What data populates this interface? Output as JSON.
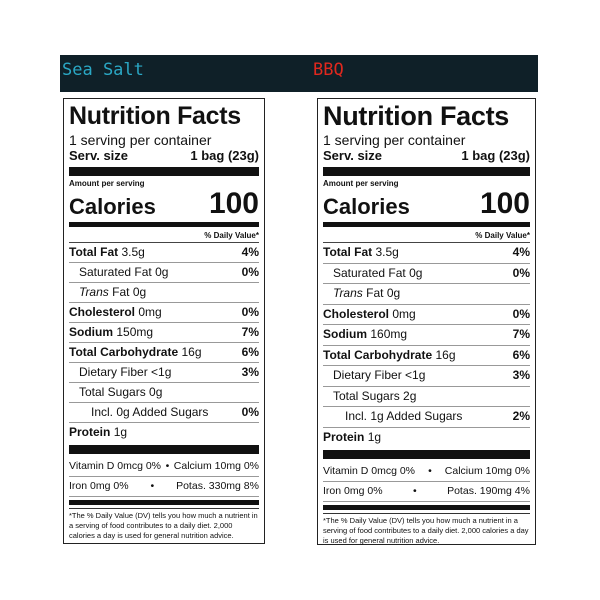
{
  "flavors": {
    "left": "Sea Salt",
    "right": "BBQ"
  },
  "labels": [
    {
      "title": "Nutrition Facts",
      "servings": "1 serving per container",
      "serv_label": "Serv. size",
      "serv_value": "1 bag (23g)",
      "amount_per_serving": "Amount per serving",
      "calories_label": "Calories",
      "calories_value": "100",
      "dv_header": "% Daily Value*",
      "rows": {
        "total_fat": {
          "name": "Total Fat",
          "amount": "3.5g",
          "pct": "4%"
        },
        "sat_fat": {
          "name": "Saturated Fat",
          "amount": "0g",
          "pct": "0%"
        },
        "trans_fat": {
          "name": "Trans",
          "amount": "Fat 0g"
        },
        "cholesterol": {
          "name": "Cholesterol",
          "amount": "0mg",
          "pct": "0%"
        },
        "sodium": {
          "name": "Sodium",
          "amount": "150mg",
          "pct": "7%"
        },
        "carb": {
          "name": "Total Carbohydrate",
          "amount": "16g",
          "pct": "6%"
        },
        "fiber": {
          "name": "Dietary Fiber",
          "amount": "<1g",
          "pct": "3%"
        },
        "sugars": {
          "name": "Total Sugars",
          "amount": "0g"
        },
        "added_sugars": {
          "name": "Incl. 0g Added Sugars",
          "pct": "0%"
        },
        "protein": {
          "name": "Protein",
          "amount": "1g"
        }
      },
      "vit_d": "Vitamin D 0mcg 0%",
      "calcium": "Calcium 10mg 0%",
      "iron": "Iron 0mg 0%",
      "potassium": "Potas. 330mg 8%",
      "bullet": "•",
      "footnote": "*The % Daily Value (DV) tells you how much a nutrient in a serving of food contributes to a daily diet. 2,000 calories a day is used for general nutrition advice."
    },
    {
      "title": "Nutrition Facts",
      "servings": "1 serving per container",
      "serv_label": "Serv. size",
      "serv_value": "1 bag (23g)",
      "amount_per_serving": "Amount per serving",
      "calories_label": "Calories",
      "calories_value": "100",
      "dv_header": "% Daily Value*",
      "rows": {
        "total_fat": {
          "name": "Total Fat",
          "amount": "3.5g",
          "pct": "4%"
        },
        "sat_fat": {
          "name": "Saturated Fat",
          "amount": "0g",
          "pct": "0%"
        },
        "trans_fat": {
          "name": "Trans",
          "amount": "Fat 0g"
        },
        "cholesterol": {
          "name": "Cholesterol",
          "amount": "0mg",
          "pct": "0%"
        },
        "sodium": {
          "name": "Sodium",
          "amount": "160mg",
          "pct": "7%"
        },
        "carb": {
          "name": "Total Carbohydrate",
          "amount": "16g",
          "pct": "6%"
        },
        "fiber": {
          "name": "Dietary Fiber",
          "amount": "<1g",
          "pct": "3%"
        },
        "sugars": {
          "name": "Total Sugars",
          "amount": "2g"
        },
        "added_sugars": {
          "name": "Incl. 1g Added Sugars",
          "pct": "2%"
        },
        "protein": {
          "name": "Protein",
          "amount": "1g"
        }
      },
      "vit_d": "Vitamin D 0mcg 0%",
      "calcium": "Calcium 10mg 0%",
      "iron": "Iron 0mg 0%",
      "potassium": "Potas. 190mg 4%",
      "bullet": "•",
      "footnote": "*The % Daily Value (DV) tells you how much a nutrient in a serving of food contributes to a daily diet. 2,000 calories a day is used for general nutrition advice."
    }
  ]
}
